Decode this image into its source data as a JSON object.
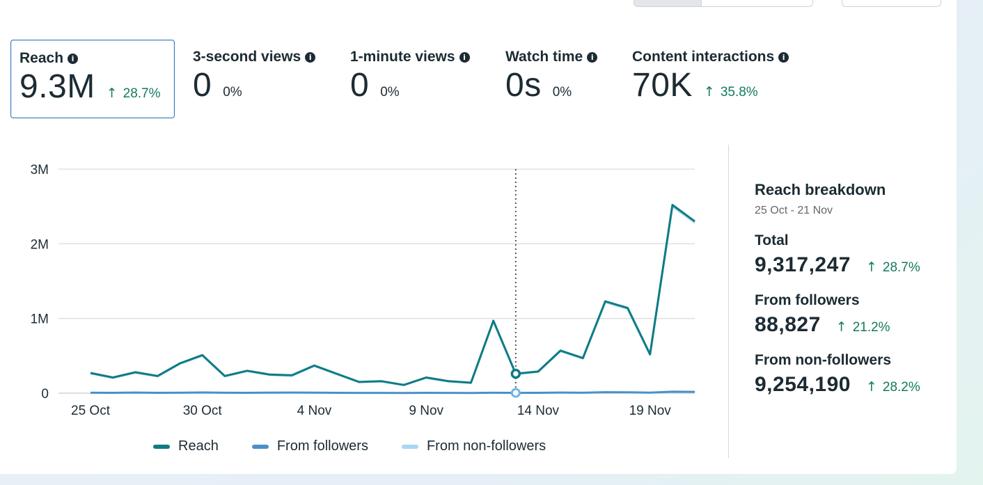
{
  "metrics": [
    {
      "label": "Reach",
      "value": "9.3M",
      "change": "28.7%",
      "direction": "up"
    },
    {
      "label": "3-second views",
      "value": "0",
      "change": "0%",
      "direction": "none"
    },
    {
      "label": "1-minute views",
      "value": "0",
      "change": "0%",
      "direction": "none"
    },
    {
      "label": "Watch time",
      "value": "0s",
      "change": "0%",
      "direction": "none"
    },
    {
      "label": "Content interactions",
      "value": "70K",
      "change": "35.8%",
      "direction": "up"
    }
  ],
  "breakdown": {
    "title": "Reach breakdown",
    "date_range": "25 Oct - 21 Nov",
    "items": [
      {
        "label": "Total",
        "value": "9,317,247",
        "change": "28.7%"
      },
      {
        "label": "From followers",
        "value": "88,827",
        "change": "21.2%"
      },
      {
        "label": "From non-followers",
        "value": "9,254,190",
        "change": "28.2%"
      }
    ]
  },
  "colors": {
    "reach": "#0f7b84",
    "followers": "#4a90c9",
    "non_followers": "#a7d8f2",
    "up": "#127a5f"
  },
  "chart_data": {
    "type": "line",
    "x": [
      "25 Oct",
      "26 Oct",
      "27 Oct",
      "28 Oct",
      "29 Oct",
      "30 Oct",
      "31 Oct",
      "1 Nov",
      "2 Nov",
      "3 Nov",
      "4 Nov",
      "5 Nov",
      "6 Nov",
      "7 Nov",
      "8 Nov",
      "9 Nov",
      "10 Nov",
      "11 Nov",
      "12 Nov",
      "13 Nov",
      "14 Nov",
      "15 Nov",
      "16 Nov",
      "17 Nov",
      "18 Nov",
      "19 Nov",
      "20 Nov",
      "21 Nov"
    ],
    "tick_labels": [
      "25 Oct",
      "30 Oct",
      "4 Nov",
      "9 Nov",
      "14 Nov",
      "19 Nov"
    ],
    "y_tick_labels": [
      "0",
      "1M",
      "2M",
      "3M"
    ],
    "y_ticks": [
      0,
      1000000,
      2000000,
      3000000
    ],
    "ylim": [
      0,
      3000000
    ],
    "highlight_x": "13 Nov",
    "grid": true,
    "legend_position": "bottom",
    "series": [
      {
        "name": "Reach",
        "color": "#0f7b84",
        "values": [
          270000,
          210000,
          280000,
          230000,
          400000,
          510000,
          230000,
          300000,
          250000,
          240000,
          370000,
          260000,
          150000,
          160000,
          110000,
          210000,
          160000,
          140000,
          970000,
          260000,
          290000,
          570000,
          470000,
          1230000,
          1140000,
          520000,
          2520000,
          2300000
        ]
      },
      {
        "name": "From followers",
        "color": "#4a90c9",
        "values": [
          6000,
          5000,
          8000,
          5000,
          6000,
          9000,
          6000,
          5000,
          7000,
          8000,
          7000,
          5000,
          4000,
          4000,
          3000,
          5000,
          4000,
          3000,
          6000,
          4000,
          5000,
          8000,
          6000,
          13000,
          11000,
          7000,
          20000,
          18000
        ]
      },
      {
        "name": "From non-followers",
        "color": "#a7d8f2",
        "values": [
          264000,
          205000,
          272000,
          225000,
          394000,
          501000,
          224000,
          295000,
          243000,
          232000,
          363000,
          255000,
          146000,
          156000,
          107000,
          205000,
          156000,
          137000,
          964000,
          256000,
          285000,
          562000,
          464000,
          1217000,
          1129000,
          513000,
          2500000,
          2282000
        ]
      }
    ]
  }
}
